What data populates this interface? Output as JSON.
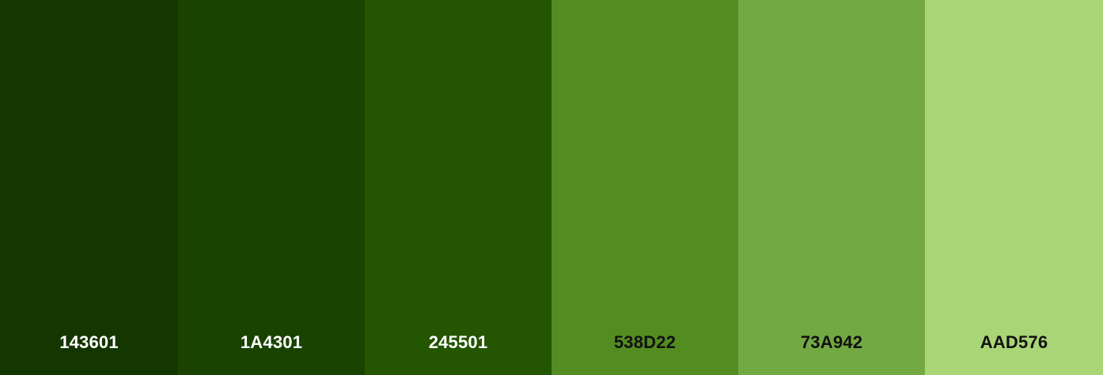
{
  "palette": {
    "swatches": [
      {
        "hex": "143601",
        "color": "#143601",
        "text_color": "#ffffff"
      },
      {
        "hex": "1A4301",
        "color": "#1A4301",
        "text_color": "#ffffff"
      },
      {
        "hex": "245501",
        "color": "#245501",
        "text_color": "#ffffff"
      },
      {
        "hex": "538D22",
        "color": "#538D22",
        "text_color": "#111111"
      },
      {
        "hex": "73A942",
        "color": "#73A942",
        "text_color": "#111111"
      },
      {
        "hex": "AAD576",
        "color": "#AAD576",
        "text_color": "#111111"
      }
    ]
  }
}
